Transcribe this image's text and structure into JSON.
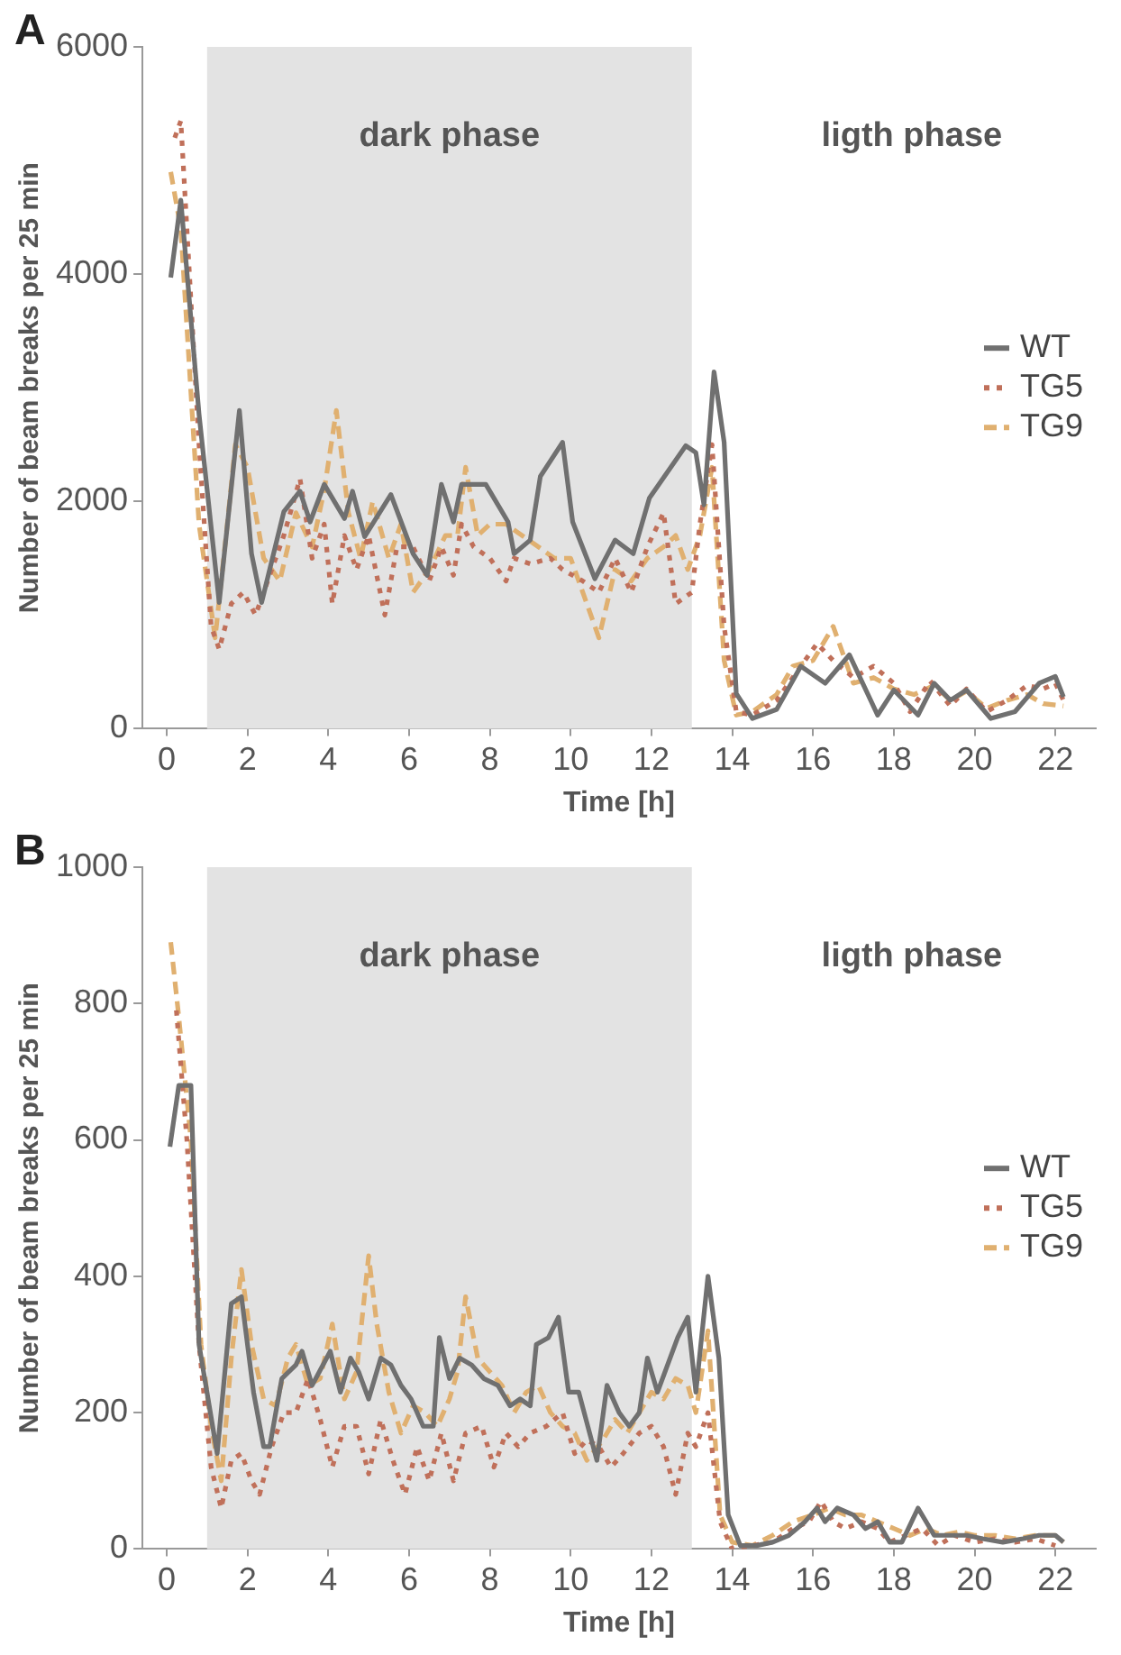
{
  "chart_data": [
    {
      "type": "line",
      "title": "A",
      "xlabel": "Time [h]",
      "ylabel": "Number of beam breaks per 25 min",
      "xlim": [
        -0.6,
        23
      ],
      "xticks": [
        0,
        2,
        4,
        6,
        8,
        10,
        12,
        14,
        16,
        18,
        20,
        22
      ],
      "ylim": [
        0,
        6000
      ],
      "yticks": [
        0,
        2000,
        4000,
        6000
      ],
      "grid": false,
      "legend": "right",
      "marker": "none",
      "bands": [
        {
          "axis": "x",
          "from": 1,
          "to": 13,
          "label": "dark phase",
          "color": "#e3e3e3"
        }
      ],
      "annotations": [
        "ligth phase"
      ],
      "series": [
        {
          "name": "WT",
          "color": "#707070",
          "line_style": "solid",
          "x": [
            0.1,
            0.35,
            0.8,
            1.3,
            1.8,
            2.1,
            2.35,
            2.9,
            3.3,
            3.55,
            3.9,
            4.4,
            4.6,
            4.9,
            5.55,
            6.1,
            6.45,
            6.8,
            7.1,
            7.3,
            7.9,
            8.45,
            8.6,
            9.0,
            9.25,
            9.8,
            10.05,
            10.6,
            11.1,
            11.55,
            11.95,
            12.85,
            13.1,
            13.3,
            13.55,
            13.8,
            14.1,
            14.5,
            15.1,
            15.7,
            16.3,
            16.9,
            17.6,
            18.0,
            18.6,
            19.0,
            19.4,
            19.8,
            20.4,
            21.0,
            21.6,
            22.0,
            22.2
          ],
          "values": [
            3970,
            4650,
            2770,
            1110,
            2800,
            1540,
            1110,
            1910,
            2090,
            1820,
            2150,
            1850,
            2090,
            1690,
            2060,
            1540,
            1350,
            2150,
            1820,
            2150,
            2150,
            1820,
            1540,
            1660,
            2220,
            2520,
            1820,
            1320,
            1660,
            1540,
            2030,
            2490,
            2430,
            1970,
            3140,
            2520,
            310,
            90,
            170,
            550,
            400,
            650,
            120,
            340,
            120,
            400,
            250,
            340,
            90,
            150,
            400,
            460,
            280
          ]
        },
        {
          "name": "TG5",
          "color": "#c0705a",
          "line_style": "dotted",
          "x": [
            0.2,
            0.35,
            0.8,
            1.1,
            1.3,
            1.6,
            1.9,
            2.2,
            2.5,
            2.9,
            3.3,
            3.6,
            3.9,
            4.1,
            4.4,
            4.7,
            5.0,
            5.4,
            5.7,
            6.1,
            6.5,
            6.8,
            7.1,
            7.3,
            7.6,
            8.0,
            8.4,
            8.6,
            9.0,
            9.5,
            9.8,
            10.3,
            10.7,
            11.1,
            11.5,
            11.9,
            12.3,
            12.6,
            13.0,
            13.2,
            13.5,
            13.8,
            14.1,
            14.5,
            15.1,
            15.6,
            16.1,
            16.5,
            17.0,
            17.5,
            18.0,
            18.4,
            18.9,
            19.4,
            19.8,
            20.3,
            20.8,
            21.3,
            21.7,
            22.0,
            22.2
          ],
          "values": [
            5200,
            5350,
            2500,
            900,
            700,
            1100,
            1200,
            1000,
            1300,
            1700,
            2200,
            1500,
            1800,
            1100,
            1700,
            1400,
            1700,
            1000,
            1600,
            1600,
            1300,
            1600,
            1350,
            1800,
            1600,
            1500,
            1300,
            1500,
            1450,
            1500,
            1400,
            1300,
            1200,
            1500,
            1200,
            1600,
            1900,
            1100,
            1200,
            1800,
            2500,
            900,
            150,
            120,
            250,
            500,
            750,
            600,
            450,
            550,
            400,
            150,
            420,
            200,
            350,
            150,
            250,
            380,
            350,
            400,
            250
          ]
        },
        {
          "name": "TG9",
          "color": "#e0b070",
          "line_style": "dashed",
          "x": [
            0.1,
            0.35,
            0.8,
            1.2,
            1.5,
            1.7,
            2.0,
            2.4,
            2.8,
            3.2,
            3.6,
            3.9,
            4.2,
            4.5,
            4.8,
            5.1,
            5.5,
            5.8,
            6.1,
            6.5,
            6.9,
            7.2,
            7.4,
            7.7,
            8.0,
            8.4,
            8.8,
            9.2,
            9.6,
            10.0,
            10.4,
            10.7,
            11.1,
            11.5,
            11.9,
            12.3,
            12.6,
            12.9,
            13.2,
            13.5,
            13.8,
            14.1,
            14.5,
            15.1,
            15.5,
            16.0,
            16.5,
            17.0,
            17.5,
            18.0,
            18.5,
            19.0,
            19.4,
            19.8,
            20.3,
            20.8,
            21.3,
            21.7,
            22.2
          ],
          "values": [
            4900,
            4400,
            1800,
            800,
            1800,
            2500,
            2300,
            1500,
            1300,
            1900,
            1600,
            2100,
            2800,
            1900,
            1500,
            2000,
            1500,
            1800,
            1200,
            1400,
            1700,
            1700,
            2300,
            1700,
            1800,
            1800,
            1700,
            1600,
            1500,
            1500,
            1100,
            800,
            1400,
            1300,
            1500,
            1600,
            1700,
            1400,
            1700,
            2300,
            600,
            120,
            150,
            300,
            550,
            600,
            900,
            400,
            450,
            350,
            300,
            380,
            250,
            330,
            180,
            250,
            300,
            220,
            200
          ]
        }
      ]
    },
    {
      "type": "line",
      "title": "B",
      "xlabel": "Time [h]",
      "ylabel": "Number of beam breaks per 25 min",
      "xlim": [
        -0.6,
        23
      ],
      "xticks": [
        0,
        2,
        4,
        6,
        8,
        10,
        12,
        14,
        16,
        18,
        20,
        22
      ],
      "ylim": [
        0,
        1000
      ],
      "yticks": [
        0,
        200,
        400,
        600,
        800,
        1000
      ],
      "grid": false,
      "legend": "right",
      "marker": "none",
      "bands": [
        {
          "axis": "x",
          "from": 1,
          "to": 13,
          "label": "dark phase",
          "color": "#e3e3e3"
        }
      ],
      "annotations": [
        "ligth phase"
      ],
      "series": [
        {
          "name": "WT",
          "color": "#707070",
          "line_style": "solid",
          "x": [
            0.08,
            0.3,
            0.6,
            0.8,
            1.25,
            1.6,
            1.85,
            2.15,
            2.4,
            2.55,
            2.85,
            3.2,
            3.35,
            3.6,
            4.05,
            4.3,
            4.55,
            4.75,
            5.0,
            5.3,
            5.55,
            5.8,
            6.05,
            6.35,
            6.6,
            6.75,
            7.0,
            7.25,
            7.55,
            7.85,
            8.2,
            8.5,
            8.75,
            9.0,
            9.15,
            9.45,
            9.7,
            9.95,
            10.2,
            10.65,
            10.9,
            11.2,
            11.45,
            11.7,
            11.9,
            12.15,
            12.65,
            12.9,
            13.1,
            13.4,
            13.67,
            13.9,
            14.2,
            14.6,
            15.0,
            15.4,
            15.8,
            16.1,
            16.3,
            16.6,
            17.0,
            17.3,
            17.6,
            17.9,
            18.2,
            18.6,
            19.0,
            19.4,
            19.8,
            20.2,
            20.7,
            21.2,
            21.6,
            22.0,
            22.2
          ],
          "values": [
            590,
            680,
            680,
            300,
            140,
            360,
            370,
            230,
            150,
            150,
            250,
            270,
            290,
            240,
            290,
            230,
            280,
            260,
            220,
            280,
            270,
            240,
            220,
            180,
            180,
            310,
            250,
            280,
            270,
            250,
            240,
            210,
            220,
            210,
            300,
            310,
            340,
            230,
            230,
            130,
            240,
            200,
            180,
            200,
            280,
            230,
            310,
            340,
            230,
            400,
            280,
            50,
            5,
            5,
            10,
            20,
            40,
            60,
            40,
            60,
            50,
            30,
            40,
            10,
            10,
            60,
            20,
            20,
            20,
            15,
            10,
            15,
            20,
            20,
            10
          ]
        },
        {
          "name": "TG5",
          "color": "#c0705a",
          "line_style": "dotted",
          "x": [
            0.24,
            0.5,
            0.8,
            1.1,
            1.35,
            1.6,
            1.85,
            2.1,
            2.3,
            2.6,
            2.9,
            3.2,
            3.5,
            3.8,
            4.1,
            4.4,
            4.7,
            5.0,
            5.3,
            5.6,
            5.9,
            6.2,
            6.5,
            6.8,
            7.1,
            7.4,
            7.8,
            8.1,
            8.4,
            8.7,
            9.0,
            9.4,
            9.8,
            10.1,
            10.4,
            10.7,
            11.0,
            11.3,
            11.7,
            12.0,
            12.3,
            12.6,
            12.9,
            13.1,
            13.4,
            13.7,
            14.0,
            14.5,
            15.0,
            15.5,
            15.9,
            16.2,
            16.5,
            16.8,
            17.2,
            17.6,
            17.9,
            18.3,
            18.7,
            19.1,
            19.5,
            20.0,
            20.5,
            21.0,
            21.5,
            22.0
          ],
          "values": [
            790,
            600,
            300,
            120,
            60,
            130,
            140,
            100,
            80,
            150,
            200,
            200,
            250,
            190,
            120,
            180,
            180,
            110,
            190,
            130,
            80,
            150,
            100,
            170,
            100,
            170,
            180,
            120,
            170,
            150,
            170,
            180,
            200,
            140,
            160,
            150,
            120,
            140,
            170,
            180,
            150,
            80,
            170,
            150,
            200,
            40,
            0,
            5,
            10,
            30,
            40,
            70,
            40,
            30,
            40,
            30,
            10,
            20,
            30,
            5,
            20,
            10,
            15,
            10,
            15,
            5
          ]
        },
        {
          "name": "TG9",
          "color": "#e0b070",
          "line_style": "dashed",
          "x": [
            0.1,
            0.3,
            0.6,
            0.85,
            1.1,
            1.35,
            1.6,
            1.85,
            2.1,
            2.4,
            2.7,
            3.0,
            3.2,
            3.5,
            3.8,
            4.1,
            4.4,
            4.7,
            5.0,
            5.2,
            5.5,
            5.8,
            6.1,
            6.4,
            6.7,
            7.0,
            7.2,
            7.4,
            7.7,
            8.0,
            8.3,
            8.6,
            8.9,
            9.2,
            9.5,
            9.8,
            10.1,
            10.4,
            10.8,
            11.1,
            11.4,
            11.7,
            12.0,
            12.3,
            12.6,
            12.9,
            13.1,
            13.4,
            13.7,
            14.0,
            14.5,
            15.0,
            15.5,
            16.0,
            16.4,
            16.8,
            17.2,
            17.6,
            18.0,
            18.4,
            18.8,
            19.2,
            19.6,
            20.0,
            20.5,
            21.0,
            21.5,
            22.0,
            22.2
          ],
          "values": [
            890,
            780,
            600,
            300,
            180,
            100,
            280,
            410,
            300,
            220,
            210,
            280,
            300,
            240,
            250,
            330,
            220,
            260,
            430,
            330,
            230,
            170,
            210,
            200,
            180,
            220,
            260,
            370,
            280,
            260,
            240,
            200,
            230,
            240,
            200,
            180,
            170,
            130,
            160,
            190,
            170,
            200,
            230,
            220,
            250,
            240,
            200,
            320,
            50,
            10,
            5,
            20,
            40,
            50,
            60,
            50,
            50,
            40,
            30,
            20,
            30,
            20,
            25,
            20,
            20,
            15,
            20,
            20,
            10
          ]
        }
      ]
    }
  ]
}
